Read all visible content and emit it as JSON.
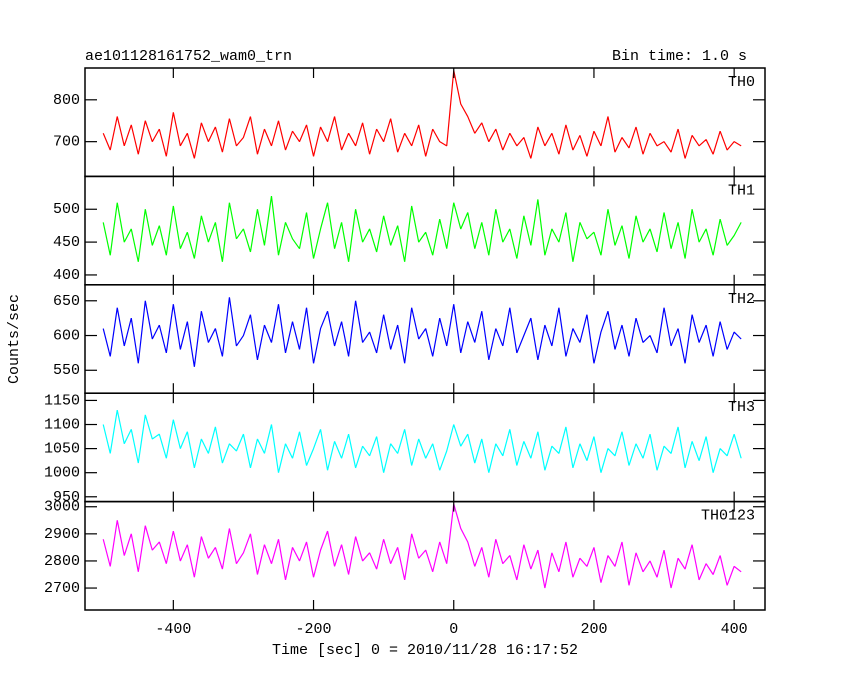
{
  "chart_data": {
    "type": "line",
    "title": "ae101128161752_wam0_trn",
    "subtitle": "Bin time: 1.0 s",
    "y_label": "Counts/sec",
    "x_label": "Time [sec] 0 = 2010/11/28 16:17:52",
    "xlim": [
      -526,
      444
    ],
    "xticks": [
      -400,
      -200,
      0,
      200,
      400
    ],
    "x": [
      -500,
      -490,
      -480,
      -470,
      -460,
      -450,
      -440,
      -430,
      -420,
      -410,
      -400,
      -390,
      -380,
      -370,
      -360,
      -350,
      -340,
      -330,
      -320,
      -310,
      -300,
      -290,
      -280,
      -270,
      -260,
      -250,
      -240,
      -230,
      -220,
      -210,
      -200,
      -190,
      -180,
      -170,
      -160,
      -150,
      -140,
      -130,
      -120,
      -110,
      -100,
      -90,
      -80,
      -70,
      -60,
      -50,
      -40,
      -30,
      -20,
      -10,
      0,
      10,
      20,
      30,
      40,
      50,
      60,
      70,
      80,
      90,
      100,
      110,
      120,
      130,
      140,
      150,
      160,
      170,
      180,
      190,
      200,
      210,
      220,
      230,
      240,
      250,
      260,
      270,
      280,
      290,
      300,
      310,
      320,
      330,
      340,
      350,
      360,
      370,
      380,
      390,
      400,
      410
    ],
    "series": [
      {
        "name": "TH0",
        "color": "#ff0000",
        "ylim": [
          617,
          876
        ],
        "yticks": [
          700,
          800
        ],
        "values": [
          720,
          680,
          760,
          690,
          740,
          670,
          750,
          700,
          730,
          665,
          770,
          690,
          720,
          660,
          745,
          700,
          735,
          675,
          755,
          690,
          710,
          760,
          670,
          730,
          690,
          750,
          680,
          725,
          700,
          740,
          665,
          735,
          700,
          760,
          680,
          720,
          690,
          745,
          670,
          730,
          700,
          755,
          675,
          720,
          690,
          740,
          665,
          730,
          700,
          690,
          870,
          790,
          760,
          720,
          745,
          700,
          730,
          680,
          720,
          690,
          710,
          660,
          735,
          690,
          720,
          670,
          740,
          680,
          715,
          665,
          725,
          690,
          760,
          675,
          710,
          685,
          735,
          670,
          720,
          690,
          700,
          675,
          730,
          660,
          715,
          690,
          705,
          670,
          725,
          680,
          700,
          690
        ]
      },
      {
        "name": "TH1",
        "color": "#00ff00",
        "ylim": [
          385,
          550
        ],
        "yticks": [
          400,
          450,
          500
        ],
        "values": [
          480,
          430,
          510,
          450,
          470,
          420,
          500,
          445,
          475,
          430,
          505,
          440,
          465,
          425,
          490,
          450,
          480,
          420,
          510,
          455,
          470,
          435,
          500,
          445,
          520,
          430,
          480,
          455,
          440,
          495,
          425,
          470,
          510,
          440,
          480,
          420,
          500,
          450,
          470,
          435,
          490,
          445,
          475,
          420,
          505,
          450,
          465,
          430,
          485,
          440,
          510,
          470,
          495,
          440,
          480,
          430,
          500,
          450,
          470,
          425,
          490,
          445,
          515,
          430,
          470,
          450,
          495,
          420,
          480,
          455,
          465,
          430,
          500,
          445,
          475,
          425,
          490,
          450,
          470,
          435,
          495,
          440,
          480,
          425,
          500,
          450,
          470,
          430,
          485,
          445,
          460,
          480
        ]
      },
      {
        "name": "TH2",
        "color": "#0000ff",
        "ylim": [
          517,
          673
        ],
        "yticks": [
          550,
          600,
          650
        ],
        "values": [
          610,
          570,
          640,
          585,
          625,
          560,
          650,
          595,
          615,
          575,
          645,
          580,
          620,
          555,
          635,
          590,
          610,
          570,
          655,
          585,
          600,
          630,
          565,
          615,
          590,
          645,
          575,
          620,
          580,
          640,
          560,
          610,
          635,
          585,
          620,
          570,
          650,
          590,
          605,
          575,
          630,
          580,
          615,
          560,
          640,
          595,
          610,
          570,
          625,
          585,
          645,
          575,
          620,
          590,
          635,
          565,
          610,
          585,
          640,
          575,
          600,
          625,
          565,
          615,
          585,
          640,
          570,
          610,
          590,
          630,
          560,
          605,
          635,
          580,
          615,
          570,
          625,
          590,
          600,
          575,
          640,
          585,
          610,
          560,
          630,
          590,
          615,
          570,
          620,
          580,
          605,
          595
        ]
      },
      {
        "name": "TH3",
        "color": "#00ffff",
        "ylim": [
          940,
          1165
        ],
        "yticks": [
          950,
          1000,
          1050,
          1100,
          1150
        ],
        "values": [
          1100,
          1040,
          1130,
          1060,
          1090,
          1020,
          1120,
          1070,
          1080,
          1030,
          1110,
          1050,
          1085,
          1010,
          1070,
          1040,
          1095,
          1020,
          1060,
          1045,
          1080,
          1010,
          1070,
          1040,
          1100,
          1000,
          1060,
          1030,
          1085,
          1015,
          1050,
          1090,
          1005,
          1065,
          1030,
          1080,
          1010,
          1055,
          1035,
          1075,
          1000,
          1060,
          1040,
          1090,
          1015,
          1070,
          1030,
          1060,
          1005,
          1045,
          1100,
          1055,
          1080,
          1020,
          1070,
          1000,
          1060,
          1035,
          1090,
          1015,
          1065,
          1030,
          1085,
          1005,
          1055,
          1040,
          1095,
          1010,
          1060,
          1025,
          1075,
          1000,
          1050,
          1035,
          1085,
          1015,
          1060,
          1030,
          1080,
          1005,
          1055,
          1040,
          1095,
          1010,
          1065,
          1025,
          1075,
          1000,
          1050,
          1035,
          1080,
          1030
        ]
      },
      {
        "name": "TH0123",
        "color": "#ff00ff",
        "ylim": [
          2619,
          3019
        ],
        "yticks": [
          2700,
          2800,
          2900,
          3000
        ],
        "values": [
          2880,
          2780,
          2950,
          2820,
          2900,
          2760,
          2930,
          2840,
          2870,
          2790,
          2910,
          2800,
          2860,
          2740,
          2890,
          2810,
          2850,
          2770,
          2920,
          2790,
          2830,
          2900,
          2750,
          2860,
          2790,
          2880,
          2730,
          2850,
          2800,
          2870,
          2740,
          2840,
          2910,
          2780,
          2860,
          2750,
          2890,
          2800,
          2830,
          2770,
          2880,
          2790,
          2850,
          2730,
          2900,
          2810,
          2840,
          2760,
          2870,
          2790,
          3010,
          2920,
          2870,
          2780,
          2850,
          2740,
          2880,
          2790,
          2820,
          2730,
          2860,
          2770,
          2840,
          2700,
          2830,
          2760,
          2870,
          2740,
          2810,
          2780,
          2850,
          2720,
          2820,
          2780,
          2870,
          2710,
          2830,
          2760,
          2800,
          2740,
          2840,
          2700,
          2810,
          2770,
          2860,
          2730,
          2790,
          2750,
          2820,
          2710,
          2780,
          2760
        ]
      }
    ]
  }
}
